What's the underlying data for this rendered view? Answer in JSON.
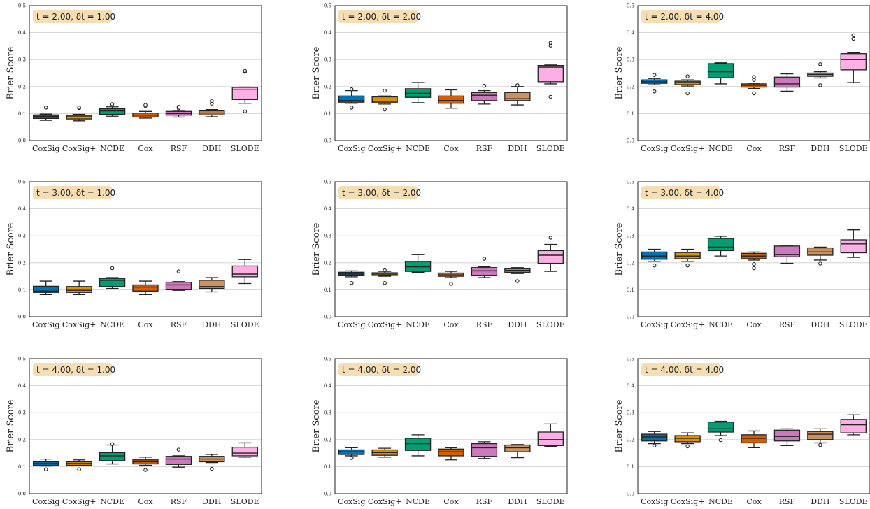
{
  "figure": {
    "background": "#ffffff",
    "title_box_color": "#f5deb3",
    "grid_color": "#cccccc"
  },
  "chart_data": [
    {
      "type": "box",
      "title": "t = 2.00, δt = 1.00",
      "ylabel": "Brier Score",
      "ylim": [
        0.0,
        0.5
      ],
      "yticks": [
        "0.0",
        "0.1",
        "0.2",
        "0.3",
        "0.4",
        "0.5"
      ],
      "grid": "horizontal",
      "categories": [
        "CoxSig",
        "CoxSig+",
        "NCDE",
        "Cox",
        "RSF",
        "DDH",
        "SLODE"
      ],
      "colors": [
        "#0173b2",
        "#de8f05",
        "#029e73",
        "#d55e00",
        "#cc78bc",
        "#ca9161",
        "#fbafe4"
      ],
      "boxes": [
        {
          "whislo": 0.075,
          "q1": 0.082,
          "med": 0.09,
          "q3": 0.095,
          "whishi": 0.098,
          "fliers": [
            0.122
          ]
        },
        {
          "whislo": 0.073,
          "q1": 0.08,
          "med": 0.088,
          "q3": 0.093,
          "whishi": 0.097,
          "fliers": [
            0.12,
            0.122
          ]
        },
        {
          "whislo": 0.09,
          "q1": 0.097,
          "med": 0.11,
          "q3": 0.118,
          "whishi": 0.125,
          "fliers": [
            0.135
          ]
        },
        {
          "whislo": 0.083,
          "q1": 0.087,
          "med": 0.094,
          "q3": 0.102,
          "whishi": 0.108,
          "fliers": [
            0.128,
            0.132
          ]
        },
        {
          "whislo": 0.087,
          "q1": 0.094,
          "med": 0.1,
          "q3": 0.108,
          "whishi": 0.112,
          "fliers": [
            0.12,
            0.125
          ]
        },
        {
          "whislo": 0.088,
          "q1": 0.095,
          "med": 0.102,
          "q3": 0.11,
          "whishi": 0.115,
          "fliers": [
            0.137,
            0.147
          ]
        },
        {
          "whislo": 0.138,
          "q1": 0.152,
          "med": 0.19,
          "q3": 0.197,
          "whishi": 0.198,
          "fliers": [
            0.108,
            0.255,
            0.258
          ]
        }
      ]
    },
    {
      "type": "box",
      "title": "t = 2.00, δt = 2.00",
      "ylabel": "Brier Score",
      "ylim": [
        0.0,
        0.5
      ],
      "yticks": [
        "0.0",
        "0.1",
        "0.2",
        "0.3",
        "0.4",
        "0.5"
      ],
      "grid": "horizontal",
      "categories": [
        "CoxSig",
        "CoxSig+",
        "NCDE",
        "Cox",
        "RSF",
        "DDH",
        "SLODE"
      ],
      "colors": [
        "#0173b2",
        "#de8f05",
        "#029e73",
        "#d55e00",
        "#cc78bc",
        "#ca9161",
        "#fbafe4"
      ],
      "boxes": [
        {
          "whislo": 0.138,
          "q1": 0.142,
          "med": 0.148,
          "q3": 0.165,
          "whishi": 0.185,
          "fliers": [
            0.122,
            0.19
          ]
        },
        {
          "whislo": 0.135,
          "q1": 0.14,
          "med": 0.145,
          "q3": 0.162,
          "whishi": 0.165,
          "fliers": [
            0.115,
            0.185
          ]
        },
        {
          "whislo": 0.14,
          "q1": 0.16,
          "med": 0.175,
          "q3": 0.192,
          "whishi": 0.215,
          "fliers": []
        },
        {
          "whislo": 0.12,
          "q1": 0.138,
          "med": 0.148,
          "q3": 0.165,
          "whishi": 0.188,
          "fliers": []
        },
        {
          "whislo": 0.135,
          "q1": 0.148,
          "med": 0.168,
          "q3": 0.178,
          "whishi": 0.185,
          "fliers": [
            0.203
          ]
        },
        {
          "whislo": 0.132,
          "q1": 0.148,
          "med": 0.155,
          "q3": 0.178,
          "whishi": 0.2,
          "fliers": [
            0.205
          ]
        },
        {
          "whislo": 0.21,
          "q1": 0.218,
          "med": 0.272,
          "q3": 0.278,
          "whishi": 0.28,
          "fliers": [
            0.162,
            0.352,
            0.362
          ]
        }
      ]
    },
    {
      "type": "box",
      "title": "t = 2.00, δt = 4.00",
      "ylabel": "Brier Score",
      "ylim": [
        0.0,
        0.5
      ],
      "yticks": [
        "0.0",
        "0.1",
        "0.2",
        "0.3",
        "0.4",
        "0.5"
      ],
      "grid": "horizontal",
      "categories": [
        "CoxSig",
        "CoxSig+",
        "NCDE",
        "Cox",
        "RSF",
        "DDH",
        "SLODE"
      ],
      "colors": [
        "#0173b2",
        "#de8f05",
        "#029e73",
        "#d55e00",
        "#cc78bc",
        "#ca9161",
        "#fbafe4"
      ],
      "boxes": [
        {
          "whislo": 0.207,
          "q1": 0.212,
          "med": 0.218,
          "q3": 0.225,
          "whishi": 0.23,
          "fliers": [
            0.182,
            0.243
          ]
        },
        {
          "whislo": 0.202,
          "q1": 0.207,
          "med": 0.215,
          "q3": 0.22,
          "whishi": 0.225,
          "fliers": [
            0.175,
            0.238
          ]
        },
        {
          "whislo": 0.21,
          "q1": 0.233,
          "med": 0.255,
          "q3": 0.285,
          "whishi": 0.288,
          "fliers": []
        },
        {
          "whislo": 0.193,
          "q1": 0.198,
          "med": 0.205,
          "q3": 0.21,
          "whishi": 0.213,
          "fliers": [
            0.175,
            0.225,
            0.235
          ]
        },
        {
          "whislo": 0.183,
          "q1": 0.198,
          "med": 0.21,
          "q3": 0.235,
          "whishi": 0.247,
          "fliers": []
        },
        {
          "whislo": 0.232,
          "q1": 0.238,
          "med": 0.245,
          "q3": 0.25,
          "whishi": 0.255,
          "fliers": [
            0.205,
            0.283
          ]
        },
        {
          "whislo": 0.215,
          "q1": 0.262,
          "med": 0.3,
          "q3": 0.322,
          "whishi": 0.325,
          "fliers": [
            0.377,
            0.39
          ]
        }
      ]
    },
    {
      "type": "box",
      "title": "t = 3.00, δt = 1.00",
      "ylabel": "Brier Score",
      "ylim": [
        0.0,
        0.5
      ],
      "yticks": [
        "0.0",
        "0.1",
        "0.2",
        "0.3",
        "0.4",
        "0.5"
      ],
      "grid": "horizontal",
      "categories": [
        "CoxSig",
        "CoxSig+",
        "NCDE",
        "Cox",
        "RSF",
        "DDH",
        "SLODE"
      ],
      "colors": [
        "#0173b2",
        "#de8f05",
        "#029e73",
        "#d55e00",
        "#cc78bc",
        "#ca9161",
        "#fbafe4"
      ],
      "boxes": [
        {
          "whislo": 0.082,
          "q1": 0.09,
          "med": 0.095,
          "q3": 0.113,
          "whishi": 0.132,
          "fliers": []
        },
        {
          "whislo": 0.082,
          "q1": 0.09,
          "med": 0.098,
          "q3": 0.112,
          "whishi": 0.132,
          "fliers": []
        },
        {
          "whislo": 0.105,
          "q1": 0.112,
          "med": 0.135,
          "q3": 0.142,
          "whishi": 0.145,
          "fliers": [
            0.18
          ]
        },
        {
          "whislo": 0.082,
          "q1": 0.095,
          "med": 0.11,
          "q3": 0.118,
          "whishi": 0.132,
          "fliers": []
        },
        {
          "whislo": 0.098,
          "q1": 0.1,
          "med": 0.118,
          "q3": 0.128,
          "whishi": 0.13,
          "fliers": [
            0.168
          ]
        },
        {
          "whislo": 0.092,
          "q1": 0.105,
          "med": 0.112,
          "q3": 0.135,
          "whishi": 0.145,
          "fliers": []
        },
        {
          "whislo": 0.123,
          "q1": 0.148,
          "med": 0.158,
          "q3": 0.188,
          "whishi": 0.212,
          "fliers": []
        }
      ]
    },
    {
      "type": "box",
      "title": "t = 3.00, δt = 2.00",
      "ylabel": "Brier Score",
      "ylim": [
        0.0,
        0.5
      ],
      "yticks": [
        "0.0",
        "0.1",
        "0.2",
        "0.3",
        "0.4",
        "0.5"
      ],
      "grid": "horizontal",
      "categories": [
        "CoxSig",
        "CoxSig+",
        "NCDE",
        "Cox",
        "RSF",
        "DDH",
        "SLODE"
      ],
      "colors": [
        "#0173b2",
        "#de8f05",
        "#029e73",
        "#d55e00",
        "#cc78bc",
        "#ca9161",
        "#fbafe4"
      ],
      "boxes": [
        {
          "whislo": 0.148,
          "q1": 0.152,
          "med": 0.158,
          "q3": 0.165,
          "whishi": 0.17,
          "fliers": [
            0.125
          ]
        },
        {
          "whislo": 0.15,
          "q1": 0.153,
          "med": 0.158,
          "q3": 0.163,
          "whishi": 0.168,
          "fliers": [
            0.125,
            0.172
          ]
        },
        {
          "whislo": 0.165,
          "q1": 0.168,
          "med": 0.185,
          "q3": 0.205,
          "whishi": 0.23,
          "fliers": []
        },
        {
          "whislo": 0.145,
          "q1": 0.15,
          "med": 0.155,
          "q3": 0.162,
          "whishi": 0.168,
          "fliers": [
            0.122
          ]
        },
        {
          "whislo": 0.145,
          "q1": 0.152,
          "med": 0.17,
          "q3": 0.182,
          "whishi": 0.185,
          "fliers": [
            0.215
          ]
        },
        {
          "whislo": 0.16,
          "q1": 0.165,
          "med": 0.172,
          "q3": 0.178,
          "whishi": 0.182,
          "fliers": [
            0.132
          ]
        },
        {
          "whislo": 0.168,
          "q1": 0.198,
          "med": 0.228,
          "q3": 0.245,
          "whishi": 0.268,
          "fliers": [
            0.293
          ]
        }
      ]
    },
    {
      "type": "box",
      "title": "t = 3.00, δt = 4.00",
      "ylabel": "Brier Score",
      "ylim": [
        0.0,
        0.5
      ],
      "yticks": [
        "0.0",
        "0.1",
        "0.2",
        "0.3",
        "0.4",
        "0.5"
      ],
      "grid": "horizontal",
      "categories": [
        "CoxSig",
        "CoxSig+",
        "NCDE",
        "Cox",
        "RSF",
        "DDH",
        "SLODE"
      ],
      "colors": [
        "#0173b2",
        "#de8f05",
        "#029e73",
        "#d55e00",
        "#cc78bc",
        "#ca9161",
        "#fbafe4"
      ],
      "boxes": [
        {
          "whislo": 0.205,
          "q1": 0.213,
          "med": 0.225,
          "q3": 0.24,
          "whishi": 0.25,
          "fliers": [
            0.19
          ]
        },
        {
          "whislo": 0.205,
          "q1": 0.215,
          "med": 0.225,
          "q3": 0.238,
          "whishi": 0.25,
          "fliers": [
            0.19
          ]
        },
        {
          "whislo": 0.225,
          "q1": 0.245,
          "med": 0.258,
          "q3": 0.29,
          "whishi": 0.298,
          "fliers": []
        },
        {
          "whislo": 0.21,
          "q1": 0.215,
          "med": 0.225,
          "q3": 0.235,
          "whishi": 0.24,
          "fliers": [
            0.18,
            0.195
          ]
        },
        {
          "whislo": 0.198,
          "q1": 0.222,
          "med": 0.23,
          "q3": 0.262,
          "whishi": 0.265,
          "fliers": []
        },
        {
          "whislo": 0.21,
          "q1": 0.228,
          "med": 0.24,
          "q3": 0.255,
          "whishi": 0.258,
          "fliers": [
            0.197
          ]
        },
        {
          "whislo": 0.22,
          "q1": 0.237,
          "med": 0.27,
          "q3": 0.285,
          "whishi": 0.322,
          "fliers": []
        }
      ]
    },
    {
      "type": "box",
      "title": "t = 4.00, δt = 1.00",
      "ylabel": "Brier Score",
      "ylim": [
        0.0,
        0.5
      ],
      "yticks": [
        "0.0",
        "0.1",
        "0.2",
        "0.3",
        "0.4",
        "0.5"
      ],
      "grid": "horizontal",
      "categories": [
        "CoxSig",
        "CoxSig+",
        "NCDE",
        "Cox",
        "RSF",
        "DDH",
        "SLODE"
      ],
      "colors": [
        "#0173b2",
        "#de8f05",
        "#029e73",
        "#d55e00",
        "#cc78bc",
        "#ca9161",
        "#fbafe4"
      ],
      "boxes": [
        {
          "whislo": 0.102,
          "q1": 0.105,
          "med": 0.112,
          "q3": 0.118,
          "whishi": 0.128,
          "fliers": [
            0.09
          ]
        },
        {
          "whislo": 0.105,
          "q1": 0.105,
          "med": 0.112,
          "q3": 0.118,
          "whishi": 0.125,
          "fliers": [
            0.09
          ]
        },
        {
          "whislo": 0.11,
          "q1": 0.122,
          "med": 0.14,
          "q3": 0.152,
          "whishi": 0.18,
          "fliers": [
            0.183
          ]
        },
        {
          "whislo": 0.105,
          "q1": 0.11,
          "med": 0.118,
          "q3": 0.125,
          "whishi": 0.135,
          "fliers": [
            0.088
          ]
        },
        {
          "whislo": 0.098,
          "q1": 0.108,
          "med": 0.128,
          "q3": 0.138,
          "whishi": 0.14,
          "fliers": [
            0.163
          ]
        },
        {
          "whislo": 0.115,
          "q1": 0.118,
          "med": 0.128,
          "q3": 0.138,
          "whishi": 0.145,
          "fliers": [
            0.092
          ]
        },
        {
          "whislo": 0.135,
          "q1": 0.14,
          "med": 0.15,
          "q3": 0.172,
          "whishi": 0.188,
          "fliers": []
        }
      ]
    },
    {
      "type": "box",
      "title": "t = 4.00, δt = 2.00",
      "ylabel": "Brier Score",
      "ylim": [
        0.0,
        0.5
      ],
      "yticks": [
        "0.0",
        "0.1",
        "0.2",
        "0.3",
        "0.4",
        "0.5"
      ],
      "grid": "horizontal",
      "categories": [
        "CoxSig",
        "CoxSig+",
        "NCDE",
        "Cox",
        "RSF",
        "DDH",
        "SLODE"
      ],
      "colors": [
        "#0173b2",
        "#de8f05",
        "#029e73",
        "#d55e00",
        "#cc78bc",
        "#ca9161",
        "#fbafe4"
      ],
      "boxes": [
        {
          "whislo": 0.14,
          "q1": 0.145,
          "med": 0.155,
          "q3": 0.162,
          "whishi": 0.17,
          "fliers": [
            0.132
          ]
        },
        {
          "whislo": 0.135,
          "q1": 0.142,
          "med": 0.152,
          "q3": 0.162,
          "whishi": 0.168,
          "fliers": []
        },
        {
          "whislo": 0.14,
          "q1": 0.16,
          "med": 0.185,
          "q3": 0.205,
          "whishi": 0.218,
          "fliers": []
        },
        {
          "whislo": 0.125,
          "q1": 0.14,
          "med": 0.155,
          "q3": 0.165,
          "whishi": 0.17,
          "fliers": []
        },
        {
          "whislo": 0.13,
          "q1": 0.138,
          "med": 0.17,
          "q3": 0.185,
          "whishi": 0.192,
          "fliers": []
        },
        {
          "whislo": 0.133,
          "q1": 0.155,
          "med": 0.17,
          "q3": 0.18,
          "whishi": 0.182,
          "fliers": []
        },
        {
          "whislo": 0.175,
          "q1": 0.178,
          "med": 0.2,
          "q3": 0.228,
          "whishi": 0.258,
          "fliers": []
        }
      ]
    },
    {
      "type": "box",
      "title": "t = 4.00, δt = 4.00",
      "ylabel": "Brier Score",
      "ylim": [
        0.0,
        0.5
      ],
      "yticks": [
        "0.0",
        "0.1",
        "0.2",
        "0.3",
        "0.4",
        "0.5"
      ],
      "grid": "horizontal",
      "categories": [
        "CoxSig",
        "CoxSig+",
        "NCDE",
        "Cox",
        "RSF",
        "DDH",
        "SLODE"
      ],
      "colors": [
        "#0173b2",
        "#de8f05",
        "#029e73",
        "#d55e00",
        "#cc78bc",
        "#ca9161",
        "#fbafe4"
      ],
      "boxes": [
        {
          "whislo": 0.185,
          "q1": 0.195,
          "med": 0.21,
          "q3": 0.22,
          "whishi": 0.23,
          "fliers": [
            0.178
          ]
        },
        {
          "whislo": 0.185,
          "q1": 0.192,
          "med": 0.205,
          "q3": 0.215,
          "whishi": 0.225,
          "fliers": [
            0.175
          ]
        },
        {
          "whislo": 0.215,
          "q1": 0.228,
          "med": 0.24,
          "q3": 0.265,
          "whishi": 0.268,
          "fliers": [
            0.198
          ]
        },
        {
          "whislo": 0.17,
          "q1": 0.188,
          "med": 0.205,
          "q3": 0.218,
          "whishi": 0.232,
          "fliers": []
        },
        {
          "whislo": 0.178,
          "q1": 0.195,
          "med": 0.212,
          "q3": 0.235,
          "whishi": 0.24,
          "fliers": []
        },
        {
          "whislo": 0.188,
          "q1": 0.2,
          "med": 0.22,
          "q3": 0.23,
          "whishi": 0.24,
          "fliers": [
            0.18
          ]
        },
        {
          "whislo": 0.218,
          "q1": 0.225,
          "med": 0.255,
          "q3": 0.275,
          "whishi": 0.292,
          "fliers": []
        }
      ]
    }
  ]
}
